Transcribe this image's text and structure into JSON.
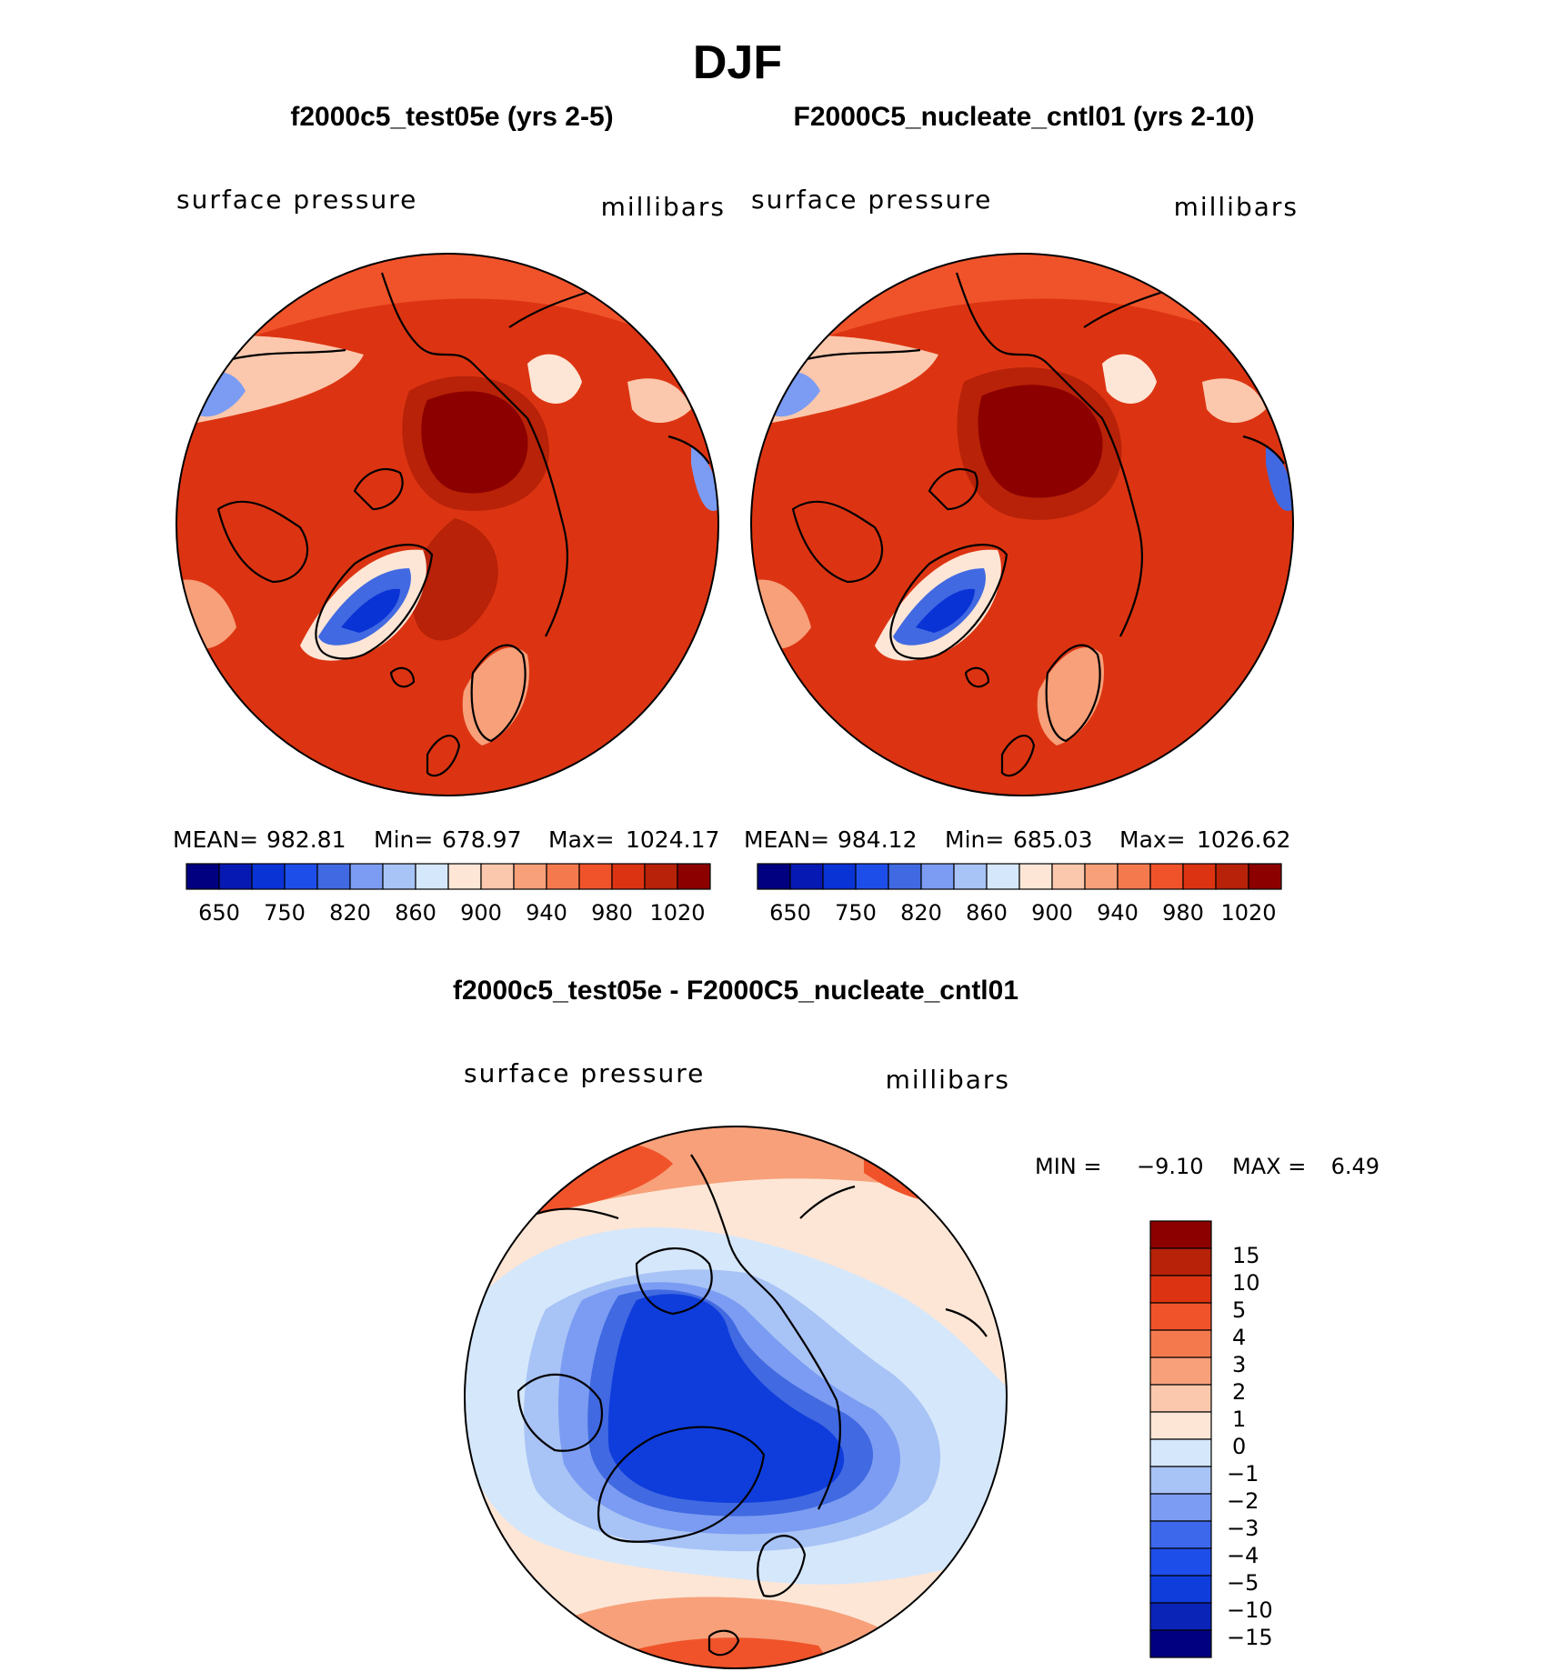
{
  "season": "DJF",
  "colors": {
    "sequential": [
      "#000080",
      "#0719b3",
      "#0a33d6",
      "#1e4eea",
      "#4169e1",
      "#7b9cf2",
      "#a8c3f5",
      "#d5e7fb",
      "#fde6d6",
      "#fbc8ad",
      "#f7a07a",
      "#f47a4e",
      "#f0532a",
      "#dc3412",
      "#b72208",
      "#8c0000"
    ],
    "diverging": [
      "#000080",
      "#0b24b8",
      "#0f3ddc",
      "#1e4eea",
      "#3d68ec",
      "#7b9cf2",
      "#a8c3f5",
      "#d5e7fb",
      "#fde6d6",
      "#fbc8ad",
      "#f7a07a",
      "#f47a4e",
      "#f0532a",
      "#dc3412",
      "#b72208",
      "#8c0000"
    ]
  },
  "top_left": {
    "title": "f2000c5_test05e (yrs 2-5)",
    "variable": "surface pressure",
    "units": "millibars",
    "stats": {
      "mean_label": "MEAN=",
      "mean": "982.81",
      "min_label": "Min=",
      "min": "678.97",
      "max_label": "Max=",
      "max": "1024.17"
    },
    "colorbar_ticks": [
      "650",
      "750",
      "820",
      "860",
      "900",
      "940",
      "980",
      "1020"
    ]
  },
  "top_right": {
    "title": "F2000C5_nucleate_cntl01 (yrs 2-10)",
    "variable": "surface pressure",
    "units": "millibars",
    "stats": {
      "mean_label": "MEAN=",
      "mean": "984.12",
      "min_label": "Min=",
      "min": "685.03",
      "max_label": "Max=",
      "max": "1026.62"
    },
    "colorbar_ticks": [
      "650",
      "750",
      "820",
      "860",
      "900",
      "940",
      "980",
      "1020"
    ]
  },
  "difference": {
    "title": "f2000c5_test05e - F2000C5_nucleate_cntl01",
    "variable": "surface pressure",
    "units": "millibars",
    "min_label": "MIN =",
    "min": "−9.10",
    "max_label": "MAX =",
    "max": "6.49",
    "colorbar_ticks": [
      "15",
      "10",
      "5",
      "4",
      "3",
      "2",
      "1",
      "0",
      "−1",
      "−2",
      "−3",
      "−4",
      "−5",
      "−10",
      "−15"
    ]
  }
}
